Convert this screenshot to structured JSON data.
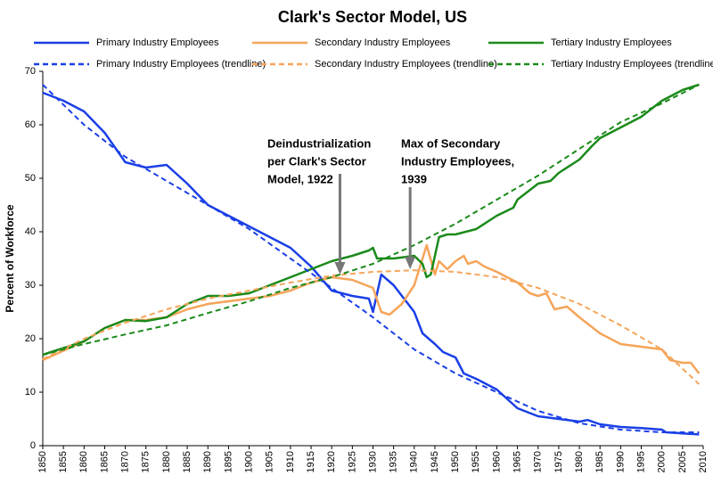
{
  "chart_data": {
    "type": "line",
    "title": "Clark's Sector Model, US",
    "y_label": "Percent of Workforce",
    "xlim": [
      1850,
      2010
    ],
    "xticks": [
      1850,
      1855,
      1860,
      1865,
      1870,
      1875,
      1880,
      1885,
      1890,
      1895,
      1900,
      1905,
      1910,
      1915,
      1920,
      1925,
      1930,
      1935,
      1940,
      1945,
      1950,
      1955,
      1960,
      1965,
      1970,
      1975,
      1980,
      1985,
      1990,
      1995,
      2000,
      2005,
      2010
    ],
    "ylim": [
      0,
      70
    ],
    "yticks": [
      0,
      10,
      20,
      30,
      40,
      50,
      60,
      70
    ],
    "series": [
      {
        "name": "Primary Industry Employees",
        "color": "#1a3fe6",
        "dashed": false,
        "x": [
          1850,
          1855,
          1860,
          1865,
          1870,
          1875,
          1880,
          1885,
          1890,
          1895,
          1900,
          1905,
          1910,
          1915,
          1920,
          1925,
          1929,
          1930,
          1932,
          1935,
          1938,
          1940,
          1942,
          1945,
          1947,
          1950,
          1952,
          1955,
          1960,
          1965,
          1970,
          1975,
          1980,
          1982,
          1985,
          1990,
          1995,
          2000,
          2001,
          2005,
          2009
        ],
        "values": [
          66,
          64.5,
          62.5,
          58.5,
          53,
          52,
          52.5,
          49,
          45,
          43,
          41,
          39,
          37,
          33.5,
          29,
          28,
          27.5,
          25,
          32,
          30,
          27,
          25,
          21,
          19,
          17.5,
          16.5,
          13.5,
          12.5,
          10.5,
          7,
          5.5,
          5,
          4.5,
          4.8,
          4,
          3.5,
          3.3,
          3,
          2.5,
          2.3,
          2.1
        ]
      },
      {
        "name": "Secondary Industry Employees",
        "color": "#f5a55a",
        "dashed": false,
        "x": [
          1850,
          1860,
          1865,
          1870,
          1875,
          1880,
          1885,
          1890,
          1895,
          1900,
          1905,
          1910,
          1915,
          1920,
          1925,
          1930,
          1932,
          1934,
          1937,
          1940,
          1942,
          1943,
          1945,
          1946,
          1948,
          1950,
          1952,
          1953,
          1955,
          1957,
          1960,
          1965,
          1968,
          1970,
          1972,
          1974,
          1977,
          1980,
          1985,
          1990,
          1995,
          2000,
          2002,
          2005,
          2007,
          2009
        ],
        "values": [
          16,
          19.5,
          22,
          23.5,
          23.5,
          24,
          25.5,
          26.5,
          27,
          27.5,
          28,
          29,
          30.5,
          31.5,
          31,
          29.5,
          25,
          24.5,
          26.5,
          30,
          35,
          37.5,
          32,
          34.5,
          33,
          34.5,
          35.5,
          34,
          34.5,
          33.5,
          32.5,
          30.5,
          28.5,
          28,
          28.5,
          25.5,
          26,
          24,
          21,
          19,
          18.5,
          18,
          16,
          15.5,
          15.5,
          13.5
        ]
      },
      {
        "name": "Tertiary Industry Employees",
        "color": "#1a8a1a",
        "dashed": false,
        "x": [
          1850,
          1860,
          1865,
          1870,
          1875,
          1880,
          1885,
          1890,
          1895,
          1900,
          1905,
          1910,
          1915,
          1920,
          1925,
          1929,
          1930,
          1931,
          1935,
          1940,
          1942,
          1943,
          1944,
          1945,
          1946,
          1948,
          1950,
          1955,
          1960,
          1964,
          1965,
          1970,
          1973,
          1975,
          1980,
          1983,
          1985,
          1990,
          1995,
          2000,
          2005,
          2009
        ],
        "values": [
          17,
          19.5,
          22,
          23.5,
          23.3,
          24,
          26.5,
          28,
          28,
          28.5,
          30,
          31.5,
          33,
          34.5,
          35.5,
          36.5,
          37,
          35,
          35,
          35.5,
          34,
          31.5,
          32,
          35.5,
          39,
          39.5,
          39.5,
          40.5,
          43,
          44.5,
          46,
          49,
          49.5,
          51,
          53.5,
          56,
          57.5,
          59.5,
          61.5,
          64.5,
          66.5,
          67.5
        ]
      },
      {
        "name": "Primary Industry Employees (trendline)",
        "color": "#1a3fe6",
        "dashed": true,
        "x": [
          1850,
          1860,
          1870,
          1880,
          1890,
          1900,
          1910,
          1920,
          1930,
          1940,
          1950,
          1960,
          1970,
          1980,
          1990,
          2000,
          2009
        ],
        "values": [
          67.5,
          60,
          54,
          49.5,
          45,
          40.5,
          35,
          29.5,
          24,
          18,
          13.5,
          10,
          6.5,
          4.2,
          3,
          2.5,
          2.5
        ]
      },
      {
        "name": "Secondary Industry Employees (trendline)",
        "color": "#f5a55a",
        "dashed": true,
        "x": [
          1850,
          1860,
          1870,
          1880,
          1890,
          1900,
          1910,
          1920,
          1930,
          1940,
          1950,
          1960,
          1970,
          1980,
          1990,
          2000,
          2009
        ],
        "values": [
          16.2,
          20,
          23,
          25.5,
          27.5,
          29,
          30.5,
          31.8,
          32.5,
          32.8,
          32.5,
          31.5,
          29.5,
          26.5,
          22.5,
          18,
          11.5
        ]
      },
      {
        "name": "Tertiary Industry Employees (trendline)",
        "color": "#1a8a1a",
        "dashed": true,
        "x": [
          1850,
          1860,
          1870,
          1880,
          1890,
          1900,
          1910,
          1920,
          1930,
          1940,
          1950,
          1960,
          1970,
          1980,
          1990,
          2000,
          2009
        ],
        "values": [
          17,
          19,
          20.8,
          22.5,
          24.8,
          27,
          29.5,
          31.5,
          34,
          37.5,
          41.5,
          46,
          50.5,
          55.5,
          60.5,
          64,
          67.5
        ]
      }
    ],
    "annotations": [
      {
        "lines": [
          "Deindustrialization",
          "per Clark's Sector",
          "Model, 1922"
        ],
        "x": 1922,
        "y": 32
      },
      {
        "lines": [
          "Max of Secondary",
          "Industry Employees,",
          "1939"
        ],
        "x": 1939,
        "y": 33
      }
    ]
  }
}
